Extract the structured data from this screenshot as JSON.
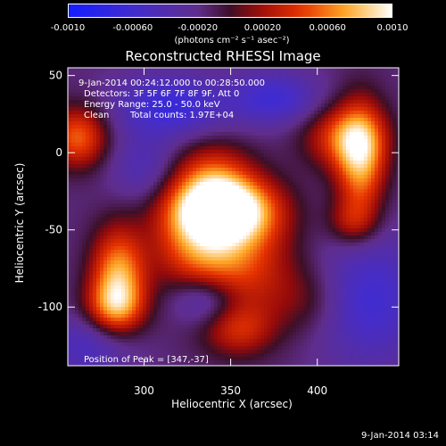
{
  "colorbar": {
    "ticks": [
      "-0.0010",
      "-0.00060",
      "-0.00020",
      "0.00020",
      "0.00060",
      "0.0010"
    ],
    "units_text": "(photons cm⁻² s⁻¹ asec⁻²)"
  },
  "footer": {
    "timestamp": "9-Jan-2014 03:14"
  },
  "chart_data": {
    "type": "heatmap",
    "title": "Reconstructed RHESSI Image",
    "xlabel": "Heliocentric X (arcsec)",
    "ylabel": "Heliocentric Y (arcsec)",
    "xlim": [
      256,
      447
    ],
    "ylim": [
      -138,
      55
    ],
    "xticks": [
      300,
      350,
      400
    ],
    "yticks": [
      50,
      0,
      -50,
      -100
    ],
    "zlim": [
      -0.001,
      0.001
    ],
    "colormap": "rhessi-blue-purple-red-yellow-white",
    "annotations": {
      "time_range": "9-Jan-2014 00:24:12.000 to 00:28:50.000",
      "detectors": "Detectors: 3F 5F 6F 7F 8F 9F, Att 0",
      "energy_range": "Energy Range: 25.0 - 50.0 keV",
      "algorithm": "Clean",
      "total_counts": "Total counts: 1.97E+04",
      "peak_position": "Position of Peak = [347,-37]"
    },
    "peak": {
      "x": 347,
      "y": -37
    }
  }
}
